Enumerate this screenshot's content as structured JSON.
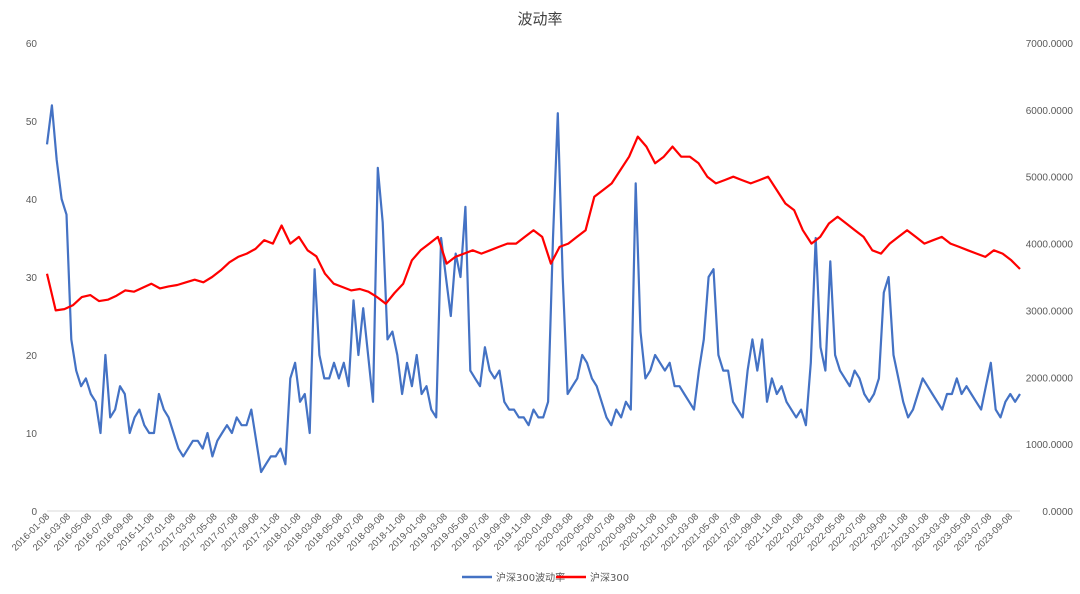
{
  "chart_data": {
    "type": "line",
    "title": "波动率",
    "left_axis": {
      "ylim": [
        0,
        60
      ],
      "ticks": [
        "0",
        "10",
        "20",
        "30",
        "40",
        "50",
        "60"
      ]
    },
    "right_axis": {
      "ylim": [
        0,
        7000
      ],
      "ticks": [
        "0.0000",
        "1000.0000",
        "2000.0000",
        "3000.0000",
        "4000.0000",
        "5000.0000",
        "6000.0000",
        "7000.0000"
      ]
    },
    "x_tick_labels": [
      "2016-01-08",
      "2016-03-08",
      "2016-05-08",
      "2016-07-08",
      "2016-09-08",
      "2016-11-08",
      "2017-01-08",
      "2017-03-08",
      "2017-05-08",
      "2017-07-08",
      "2017-09-08",
      "2017-11-08",
      "2018-01-08",
      "2018-03-08",
      "2018-05-08",
      "2018-07-08",
      "2018-09-08",
      "2018-11-08",
      "2019-01-08",
      "2019-03-08",
      "2019-05-08",
      "2019-07-08",
      "2019-09-08",
      "2019-11-08",
      "2020-01-08",
      "2020-03-08",
      "2020-05-08",
      "2020-07-08",
      "2020-09-08",
      "2020-11-08",
      "2021-01-08",
      "2021-03-08",
      "2021-05-08",
      "2021-07-08",
      "2021-09-08",
      "2021-11-08",
      "2022-01-08",
      "2022-03-08",
      "2022-05-08",
      "2022-07-08",
      "2022-09-08",
      "2022-11-08",
      "2023-01-08",
      "2023-03-08",
      "2023-05-08",
      "2023-07-08",
      "2023-09-08"
    ],
    "legend_position": "bottom",
    "grid": false,
    "series": [
      {
        "name": "沪深300波动率",
        "axis": "left",
        "color": "#4472C4",
        "values": [
          47,
          52,
          45,
          40,
          38,
          22,
          18,
          16,
          17,
          15,
          14,
          10,
          20,
          12,
          13,
          16,
          15,
          10,
          12,
          13,
          11,
          10,
          10,
          15,
          13,
          12,
          10,
          8,
          7,
          8,
          9,
          9,
          8,
          10,
          7,
          9,
          10,
          11,
          10,
          12,
          11,
          11,
          13,
          9,
          5,
          6,
          7,
          7,
          8,
          6,
          17,
          19,
          14,
          15,
          10,
          31,
          20,
          17,
          17,
          19,
          17,
          19,
          16,
          27,
          20,
          26,
          20,
          14,
          44,
          37,
          22,
          23,
          20,
          15,
          19,
          16,
          20,
          15,
          16,
          13,
          12,
          35,
          30,
          25,
          33,
          30,
          39,
          18,
          17,
          16,
          21,
          18,
          17,
          18,
          14,
          13,
          13,
          12,
          12,
          11,
          13,
          12,
          12,
          14,
          35,
          51,
          30,
          15,
          16,
          17,
          20,
          19,
          17,
          16,
          14,
          12,
          11,
          13,
          12,
          14,
          13,
          42,
          23,
          17,
          18,
          20,
          19,
          18,
          19,
          16,
          16,
          15,
          14,
          13,
          18,
          22,
          30,
          31,
          20,
          18,
          18,
          14,
          13,
          12,
          18,
          22,
          18,
          22,
          14,
          17,
          15,
          16,
          14,
          13,
          12,
          13,
          11,
          19,
          35,
          21,
          18,
          32,
          20,
          18,
          17,
          16,
          18,
          17,
          15,
          14,
          15,
          17,
          28,
          30,
          20,
          17,
          14,
          12,
          13,
          15,
          17,
          16,
          15,
          14,
          13,
          15,
          15,
          17,
          15,
          16,
          15,
          14,
          13,
          16,
          19,
          13,
          12,
          14,
          15,
          14,
          15
        ]
      },
      {
        "name": "沪深300",
        "axis": "right",
        "color": "#FF0000",
        "values": [
          3550,
          3000,
          3020,
          3080,
          3200,
          3230,
          3140,
          3160,
          3220,
          3300,
          3280,
          3340,
          3400,
          3330,
          3360,
          3380,
          3420,
          3460,
          3420,
          3500,
          3600,
          3720,
          3800,
          3850,
          3920,
          4050,
          4000,
          4270,
          4000,
          4100,
          3900,
          3810,
          3550,
          3400,
          3350,
          3300,
          3320,
          3280,
          3200,
          3100,
          3260,
          3400,
          3750,
          3900,
          4000,
          4100,
          3700,
          3800,
          3850,
          3900,
          3850,
          3900,
          3950,
          4000,
          4000,
          4100,
          4200,
          4100,
          3700,
          3950,
          4000,
          4100,
          4200,
          4700,
          4800,
          4900,
          5100,
          5300,
          5600,
          5450,
          5200,
          5300,
          5450,
          5300,
          5300,
          5200,
          5000,
          4900,
          4950,
          5000,
          4950,
          4900,
          4950,
          5000,
          4800,
          4600,
          4500,
          4200,
          4000,
          4100,
          4300,
          4400,
          4300,
          4200,
          4100,
          3900,
          3850,
          4000,
          4100,
          4200,
          4100,
          4000,
          4050,
          4100,
          4000,
          3950,
          3900,
          3850,
          3800,
          3900,
          3850,
          3750,
          3620
        ]
      }
    ]
  }
}
